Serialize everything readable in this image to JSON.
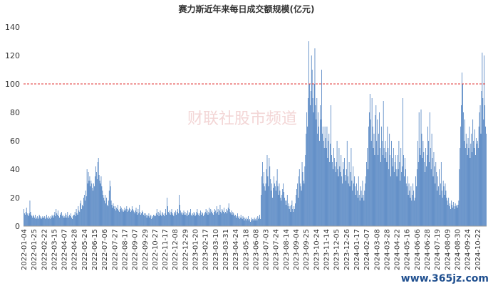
{
  "chart_data": {
    "type": "bar",
    "title": "赛力斯近年来每日成交额规模(亿元)",
    "watermark": "财联社股市频道",
    "corner_text": "www.365jz.com",
    "color": "#4a7ebf",
    "ref_line": 100,
    "ref_color": "#e03030",
    "ylim": [
      0,
      140
    ],
    "yticks": [
      0,
      20,
      40,
      60,
      80,
      100,
      120,
      140
    ],
    "grid": false,
    "categories": [
      "2022-01-04",
      null,
      null,
      null,
      null,
      null,
      null,
      null,
      null,
      null,
      null,
      null,
      null,
      null,
      null,
      "2022-01-25",
      null,
      null,
      null,
      null,
      null,
      null,
      null,
      null,
      null,
      null,
      null,
      null,
      null,
      null,
      "2022-02-22",
      null,
      null,
      null,
      null,
      null,
      null,
      null,
      null,
      null,
      null,
      null,
      null,
      null,
      null,
      "2022-03-15",
      null,
      null,
      null,
      null,
      null,
      null,
      null,
      null,
      null,
      null,
      null,
      null,
      null,
      null,
      "2022-04-07",
      null,
      null,
      null,
      null,
      null,
      null,
      null,
      null,
      null,
      null,
      null,
      null,
      null,
      null,
      "2022-04-28",
      null,
      null,
      null,
      null,
      null,
      null,
      null,
      null,
      null,
      null,
      null,
      null,
      null,
      null,
      "2022-05-24",
      null,
      null,
      null,
      null,
      null,
      null,
      null,
      null,
      null,
      null,
      null,
      null,
      null,
      null,
      "2022-06-15",
      null,
      null,
      null,
      null,
      null,
      null,
      null,
      null,
      null,
      null,
      null,
      null,
      null,
      null,
      "2022-07-06",
      null,
      null,
      null,
      null,
      null,
      null,
      null,
      null,
      null,
      null,
      null,
      null,
      null,
      null,
      "2022-07-27",
      null,
      null,
      null,
      null,
      null,
      null,
      null,
      null,
      null,
      null,
      null,
      null,
      null,
      null,
      "2022-08-17",
      null,
      null,
      null,
      null,
      null,
      null,
      null,
      null,
      null,
      null,
      null,
      null,
      null,
      null,
      "2022-09-07",
      null,
      null,
      null,
      null,
      null,
      null,
      null,
      null,
      null,
      null,
      null,
      null,
      null,
      null,
      "2022-09-29",
      null,
      null,
      null,
      null,
      null,
      null,
      null,
      null,
      null,
      null,
      null,
      null,
      null,
      null,
      "2022-10-27",
      null,
      null,
      null,
      null,
      null,
      null,
      null,
      null,
      null,
      null,
      null,
      null,
      null,
      null,
      "2022-11-17",
      null,
      null,
      null,
      null,
      null,
      null,
      null,
      null,
      null,
      null,
      null,
      null,
      null,
      null,
      "2022-12-08",
      null,
      null,
      null,
      null,
      null,
      null,
      null,
      null,
      null,
      null,
      null,
      null,
      null,
      null,
      "2022-12-29",
      null,
      null,
      null,
      null,
      null,
      null,
      null,
      null,
      null,
      null,
      null,
      null,
      null,
      null,
      "2023-01-20",
      null,
      null,
      null,
      null,
      null,
      null,
      null,
      null,
      null,
      null,
      null,
      null,
      null,
      null,
      "2023-02-17",
      null,
      null,
      null,
      null,
      null,
      null,
      null,
      null,
      null,
      null,
      null,
      null,
      null,
      null,
      "2023-03-10",
      null,
      null,
      null,
      null,
      null,
      null,
      null,
      null,
      null,
      null,
      null,
      null,
      null,
      null,
      "2023-03-31",
      null,
      null,
      null,
      null,
      null,
      null,
      null,
      null,
      null,
      null,
      null,
      null,
      null,
      null,
      "2023-04-24",
      null,
      null,
      null,
      null,
      null,
      null,
      null,
      null,
      null,
      null,
      null,
      null,
      null,
      null,
      "2023-05-18",
      null,
      null,
      null,
      null,
      null,
      null,
      null,
      null,
      null,
      null,
      null,
      null,
      null,
      null,
      "2023-06-08",
      null,
      null,
      null,
      null,
      null,
      null,
      null,
      null,
      null,
      null,
      null,
      null,
      null,
      null,
      "2023-07-03",
      null,
      null,
      null,
      null,
      null,
      null,
      null,
      null,
      null,
      null,
      null,
      null,
      null,
      null,
      "2023-07-24",
      null,
      null,
      null,
      null,
      null,
      null,
      null,
      null,
      null,
      null,
      null,
      null,
      null,
      null,
      "2023-08-14",
      null,
      null,
      null,
      null,
      null,
      null,
      null,
      null,
      null,
      null,
      null,
      null,
      null,
      null,
      "2023-09-04",
      null,
      null,
      null,
      null,
      null,
      null,
      null,
      null,
      null,
      null,
      null,
      null,
      null,
      null,
      "2023-09-25",
      null,
      null,
      null,
      null,
      null,
      null,
      null,
      null,
      null,
      null,
      null,
      null,
      null,
      null,
      "2023-10-24",
      null,
      null,
      null,
      null,
      null,
      null,
      null,
      null,
      null,
      null,
      null,
      null,
      null,
      null,
      "2023-11-14",
      null,
      null,
      null,
      null,
      null,
      null,
      null,
      null,
      null,
      null,
      null,
      null,
      null,
      null,
      "2023-12-05",
      null,
      null,
      null,
      null,
      null,
      null,
      null,
      null,
      null,
      null,
      null,
      null,
      null,
      null,
      "2023-12-26",
      null,
      null,
      null,
      null,
      null,
      null,
      null,
      null,
      null,
      null,
      null,
      null,
      null,
      null,
      "2024-01-17",
      null,
      null,
      null,
      null,
      null,
      null,
      null,
      null,
      null,
      null,
      null,
      null,
      null,
      null,
      "2024-02-07",
      null,
      null,
      null,
      null,
      null,
      null,
      null,
      null,
      null,
      null,
      null,
      null,
      null,
      null,
      "2024-03-08",
      null,
      null,
      null,
      null,
      null,
      null,
      null,
      null,
      null,
      null,
      null,
      null,
      null,
      null,
      "2024-03-28",
      null,
      null,
      null,
      null,
      null,
      null,
      null,
      null,
      null,
      null,
      null,
      null,
      null,
      null,
      "2024-04-22",
      null,
      null,
      null,
      null,
      null,
      null,
      null,
      null,
      null,
      null,
      null,
      null,
      null,
      null,
      "2024-05-16",
      null,
      null,
      null,
      null,
      null,
      null,
      null,
      null,
      null,
      null,
      null,
      null,
      null,
      null,
      "2024-06-06",
      null,
      null,
      null,
      null,
      null,
      null,
      null,
      null,
      null,
      null,
      null,
      null,
      null,
      null,
      "2024-06-28",
      null,
      null,
      null,
      null,
      null,
      null,
      null,
      null,
      null,
      null,
      null,
      null,
      null,
      null,
      "2024-07-19",
      null,
      null,
      null,
      null,
      null,
      null,
      null,
      null,
      null,
      null,
      null,
      null,
      null,
      null,
      "2024-08-09",
      null,
      null,
      null,
      null,
      null,
      null,
      null,
      null,
      null,
      null,
      null,
      null,
      null,
      null,
      "2024-08-30",
      null,
      null,
      null,
      null,
      null,
      null,
      null,
      null,
      null,
      null,
      null,
      null,
      null,
      null,
      "2024-09-24",
      null,
      null,
      null,
      null,
      null,
      null,
      null,
      null,
      null,
      null,
      null,
      null,
      null,
      null,
      "2024-10-22",
      null,
      null,
      null,
      null,
      null,
      null,
      null,
      null,
      null,
      null,
      null,
      null,
      null
    ],
    "values": [
      12,
      9,
      8,
      10,
      13,
      9,
      8,
      7,
      9,
      18,
      10,
      8,
      7,
      6,
      8,
      7,
      6,
      8,
      5,
      6,
      7,
      5,
      6,
      8,
      7,
      6,
      5,
      6,
      7,
      6,
      6,
      7,
      5,
      6,
      8,
      6,
      5,
      7,
      6,
      5,
      7,
      6,
      8,
      7,
      6,
      8,
      10,
      7,
      12,
      9,
      8,
      11,
      7,
      6,
      8,
      9,
      10,
      7,
      8,
      6,
      7,
      6,
      9,
      8,
      6,
      10,
      7,
      6,
      8,
      7,
      9,
      6,
      5,
      7,
      8,
      8,
      10,
      7,
      12,
      9,
      8,
      14,
      11,
      10,
      16,
      18,
      12,
      15,
      14,
      20,
      22,
      18,
      25,
      21,
      40,
      30,
      38,
      32,
      35,
      28,
      32,
      30,
      27,
      25,
      30,
      28,
      35,
      42,
      38,
      33,
      45,
      48,
      36,
      32,
      30,
      35,
      28,
      25,
      22,
      20,
      18,
      22,
      16,
      20,
      15,
      14,
      18,
      25,
      32,
      28,
      18,
      15,
      13,
      16,
      14,
      12,
      14,
      11,
      13,
      12,
      15,
      11,
      10,
      12,
      14,
      13,
      11,
      12,
      10,
      11,
      13,
      11,
      12,
      14,
      10,
      12,
      11,
      13,
      12,
      10,
      11,
      14,
      12,
      11,
      10,
      9,
      11,
      13,
      10,
      8,
      12,
      9,
      15,
      10,
      8,
      9,
      11,
      10,
      8,
      9,
      7,
      9,
      8,
      6,
      8,
      7,
      9,
      6,
      7,
      8,
      5,
      7,
      6,
      8,
      7,
      8,
      7,
      9,
      12,
      8,
      10,
      7,
      9,
      11,
      8,
      7,
      10,
      9,
      8,
      7,
      9,
      12,
      8,
      20,
      14,
      10,
      9,
      11,
      8,
      10,
      12,
      9,
      8,
      7,
      10,
      9,
      11,
      8,
      10,
      12,
      9,
      22,
      15,
      11,
      9,
      10,
      8,
      9,
      11,
      8,
      10,
      8,
      9,
      7,
      11,
      8,
      10,
      9,
      12,
      8,
      7,
      9,
      8,
      10,
      9,
      7,
      8,
      10,
      12,
      9,
      8,
      7,
      9,
      11,
      8,
      10,
      9,
      7,
      8,
      9,
      10,
      12,
      9,
      11,
      8,
      10,
      13,
      9,
      12,
      10,
      11,
      9,
      8,
      10,
      12,
      11,
      9,
      14,
      10,
      12,
      8,
      11,
      15,
      10,
      9,
      12,
      11,
      10,
      13,
      9,
      10,
      12,
      9,
      11,
      13,
      16,
      12,
      10,
      9,
      11,
      8,
      10,
      9,
      8,
      7,
      8,
      6,
      7,
      9,
      6,
      7,
      5,
      6,
      8,
      6,
      5,
      7,
      6,
      4,
      6,
      5,
      4,
      6,
      5,
      7,
      4,
      5,
      3,
      4,
      6,
      5,
      4,
      5,
      6,
      4,
      5,
      6,
      4,
      7,
      5,
      6,
      8,
      5,
      22,
      35,
      45,
      30,
      38,
      28,
      25,
      30,
      40,
      50,
      35,
      28,
      48,
      42,
      33,
      25,
      30,
      20,
      27,
      35,
      30,
      28,
      25,
      32,
      40,
      28,
      22,
      30,
      25,
      20,
      18,
      22,
      26,
      30,
      24,
      20,
      18,
      15,
      18,
      22,
      14,
      16,
      12,
      14,
      10,
      15,
      18,
      12,
      10,
      14,
      12,
      16,
      22,
      26,
      30,
      20,
      35,
      40,
      30,
      28,
      25,
      45,
      38,
      32,
      30,
      42,
      50,
      65,
      80,
      70,
      90,
      130,
      100,
      85,
      95,
      120,
      110,
      90,
      80,
      100,
      125,
      85,
      75,
      90,
      65,
      80,
      70,
      60,
      85,
      75,
      110,
      65,
      70,
      60,
      55,
      70,
      62,
      55,
      70,
      48,
      60,
      65,
      45,
      58,
      85,
      50,
      45,
      40,
      55,
      48,
      42,
      38,
      45,
      60,
      40,
      35,
      55,
      42,
      38,
      50,
      35,
      30,
      45,
      40,
      48,
      36,
      32,
      40,
      60,
      35,
      30,
      45,
      28,
      38,
      55,
      32,
      25,
      42,
      30,
      35,
      28,
      22,
      30,
      25,
      20,
      35,
      22,
      18,
      28,
      25,
      20,
      32,
      22,
      18,
      25,
      30,
      35,
      45,
      55,
      40,
      70,
      80,
      93,
      75,
      60,
      90,
      70,
      55,
      65,
      50,
      78,
      85,
      60,
      75,
      50,
      65,
      80,
      55,
      45,
      70,
      60,
      50,
      88,
      55,
      48,
      60,
      52,
      45,
      70,
      55,
      40,
      65,
      50,
      35,
      60,
      48,
      42,
      55,
      38,
      45,
      50,
      40,
      35,
      50,
      40,
      60,
      45,
      32,
      55,
      38,
      42,
      90,
      50,
      35,
      48,
      40,
      30,
      28,
      35,
      22,
      30,
      25,
      20,
      28,
      18,
      22,
      30,
      25,
      18,
      20,
      35,
      28,
      40,
      60,
      45,
      80,
      55,
      50,
      82,
      65,
      48,
      60,
      52,
      45,
      38,
      55,
      42,
      50,
      70,
      60,
      45,
      80,
      55,
      40,
      65,
      48,
      35,
      52,
      42,
      30,
      45,
      38,
      25,
      35,
      28,
      40,
      22,
      30,
      45,
      25,
      20,
      32,
      28,
      22,
      30,
      25,
      20,
      18,
      15,
      20,
      14,
      16,
      12,
      18,
      15,
      13,
      17,
      14,
      12,
      16,
      14,
      15,
      13,
      15,
      18,
      40,
      55,
      70,
      85,
      108,
      100,
      80,
      60,
      75,
      55,
      65,
      58,
      50,
      62,
      55,
      70,
      48,
      58,
      65,
      52,
      75,
      60,
      55,
      68,
      50,
      62,
      58,
      60,
      55,
      70,
      80,
      85,
      65,
      95,
      122,
      90,
      75,
      120,
      85,
      70,
      65
    ]
  }
}
